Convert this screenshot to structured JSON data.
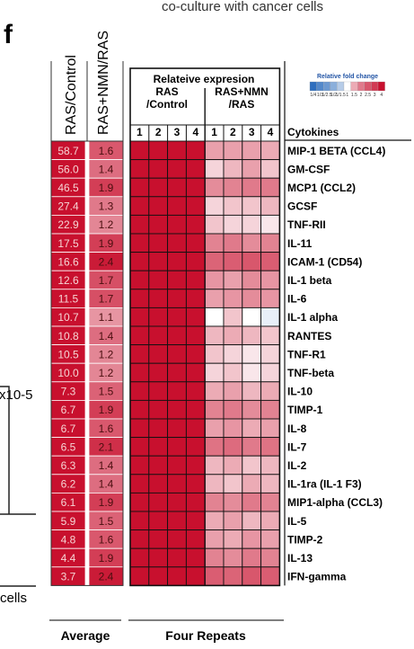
{
  "panel_label": "f",
  "top_caption": "co-culture with cancer cells",
  "left_fragments": {
    "exponent": "x10-5",
    "cells": "cells"
  },
  "colors": {
    "strong_red": "#c8102e",
    "mid_red": "#e7797f",
    "light_red": "#f5c2c4",
    "white": "#ffffff",
    "light_blue": "#dbe8f5",
    "grid": "#1a1a1a"
  },
  "chart_data": {
    "type": "heatmap",
    "average_columns": [
      "RAS/Control",
      "RAS+NMN/RAS"
    ],
    "repeat_header": {
      "line1": "Relateive expresion",
      "group1_line1": "RAS",
      "group1_line2": "/Control",
      "group2_line1": "RAS+NMN",
      "group2_line2": "/RAS"
    },
    "repeat_numbers": [
      "1",
      "2",
      "3",
      "4",
      "1",
      "2",
      "3",
      "4"
    ],
    "cytokines_header": "Cytokines",
    "legend": {
      "title": "Relative fold change",
      "tick_labels": [
        "1/4",
        "1/3",
        "1/2.5",
        "1/2",
        "1/1.5",
        "1",
        "1.5",
        "2",
        "2.5",
        "3",
        "4"
      ]
    },
    "footer_left": "Average",
    "footer_right": "Four Repeats",
    "rows": [
      {
        "cytokine": "MIP-1 BETA (CCL4)",
        "ras_control": "58.7",
        "nmn_ras": "1.6",
        "ras_repeats": [
          4,
          4,
          4,
          4
        ],
        "nmn_repeats": [
          1.6,
          1.6,
          1.6,
          1.5
        ]
      },
      {
        "cytokine": "GM-CSF",
        "ras_control": "56.0",
        "nmn_ras": "1.4",
        "ras_repeats": [
          4,
          4,
          4,
          4
        ],
        "nmn_repeats": [
          1.2,
          1.4,
          1.6,
          1.3
        ]
      },
      {
        "cytokine": "MCP1 (CCL2)",
        "ras_control": "46.5",
        "nmn_ras": "1.9",
        "ras_repeats": [
          4,
          4,
          4,
          4
        ],
        "nmn_repeats": [
          1.8,
          1.9,
          2.0,
          2.0
        ]
      },
      {
        "cytokine": "GCSF",
        "ras_control": "27.4",
        "nmn_ras": "1.3",
        "ras_repeats": [
          4,
          4,
          4,
          4
        ],
        "nmn_repeats": [
          1.2,
          1.3,
          1.3,
          1.4
        ]
      },
      {
        "cytokine": "TNF-RII",
        "ras_control": "22.9",
        "nmn_ras": "1.2",
        "ras_repeats": [
          4,
          4,
          4,
          4
        ],
        "nmn_repeats": [
          1.3,
          1.2,
          1.2,
          1.1
        ]
      },
      {
        "cytokine": "IL-11",
        "ras_control": "17.5",
        "nmn_ras": "1.9",
        "ras_repeats": [
          4,
          4,
          4,
          4
        ],
        "nmn_repeats": [
          1.9,
          2.0,
          1.8,
          1.9
        ]
      },
      {
        "cytokine": "ICAM-1 (CD54)",
        "ras_control": "16.6",
        "nmn_ras": "2.4",
        "ras_repeats": [
          4,
          4,
          4,
          4
        ],
        "nmn_repeats": [
          2.3,
          2.4,
          2.5,
          2.4
        ]
      },
      {
        "cytokine": "IL-1 beta",
        "ras_control": "12.6",
        "nmn_ras": "1.7",
        "ras_repeats": [
          4,
          4,
          4,
          4
        ],
        "nmn_repeats": [
          1.7,
          1.6,
          1.8,
          1.7
        ]
      },
      {
        "cytokine": "IL-6",
        "ras_control": "11.5",
        "nmn_ras": "1.7",
        "ras_repeats": [
          4,
          4,
          4,
          4
        ],
        "nmn_repeats": [
          1.6,
          1.7,
          1.8,
          1.7
        ]
      },
      {
        "cytokine": "IL-1 alpha",
        "ras_control": "10.7",
        "nmn_ras": "1.1",
        "ras_repeats": [
          4,
          4,
          4,
          4
        ],
        "nmn_repeats": [
          1.0,
          1.3,
          1.0,
          0.9
        ]
      },
      {
        "cytokine": "RANTES",
        "ras_control": "10.8",
        "nmn_ras": "1.4",
        "ras_repeats": [
          4,
          4,
          4,
          4
        ],
        "nmn_repeats": [
          1.4,
          1.5,
          1.4,
          1.3
        ]
      },
      {
        "cytokine": "TNF-R1",
        "ras_control": "10.5",
        "nmn_ras": "1.2",
        "ras_repeats": [
          4,
          4,
          4,
          4
        ],
        "nmn_repeats": [
          1.3,
          1.2,
          1.1,
          1.2
        ]
      },
      {
        "cytokine": "TNF-beta",
        "ras_control": "10.0",
        "nmn_ras": "1.2",
        "ras_repeats": [
          4,
          4,
          4,
          4
        ],
        "nmn_repeats": [
          1.2,
          1.3,
          1.1,
          1.2
        ]
      },
      {
        "cytokine": "IL-10",
        "ras_control": "7.3",
        "nmn_ras": "1.5",
        "ras_repeats": [
          4,
          4,
          4,
          4
        ],
        "nmn_repeats": [
          1.5,
          1.6,
          1.4,
          1.5
        ]
      },
      {
        "cytokine": "TIMP-1",
        "ras_control": "6.7",
        "nmn_ras": "1.9",
        "ras_repeats": [
          4,
          4,
          4,
          4
        ],
        "nmn_repeats": [
          1.9,
          2.0,
          1.8,
          1.9
        ]
      },
      {
        "cytokine": "IL-8",
        "ras_control": "6.7",
        "nmn_ras": "1.6",
        "ras_repeats": [
          4,
          4,
          4,
          4
        ],
        "nmn_repeats": [
          1.6,
          1.7,
          1.5,
          1.6
        ]
      },
      {
        "cytokine": "IL-7",
        "ras_control": "6.5",
        "nmn_ras": "2.1",
        "ras_repeats": [
          4,
          4,
          4,
          4
        ],
        "nmn_repeats": [
          2.1,
          2.2,
          2.0,
          2.1
        ]
      },
      {
        "cytokine": "IL-2",
        "ras_control": "6.3",
        "nmn_ras": "1.4",
        "ras_repeats": [
          4,
          4,
          4,
          4
        ],
        "nmn_repeats": [
          1.4,
          1.5,
          1.3,
          1.4
        ]
      },
      {
        "cytokine": "IL-1ra (IL-1 F3)",
        "ras_control": "6.2",
        "nmn_ras": "1.4",
        "ras_repeats": [
          4,
          4,
          4,
          4
        ],
        "nmn_repeats": [
          1.4,
          1.3,
          1.5,
          1.4
        ]
      },
      {
        "cytokine": "MIP1-alpha (CCL3)",
        "ras_control": "6.1",
        "nmn_ras": "1.9",
        "ras_repeats": [
          4,
          4,
          4,
          4
        ],
        "nmn_repeats": [
          1.9,
          1.8,
          2.0,
          1.9
        ]
      },
      {
        "cytokine": "IL-5",
        "ras_control": "5.9",
        "nmn_ras": "1.5",
        "ras_repeats": [
          4,
          4,
          4,
          4
        ],
        "nmn_repeats": [
          1.5,
          1.6,
          1.4,
          1.5
        ]
      },
      {
        "cytokine": "TIMP-2",
        "ras_control": "4.8",
        "nmn_ras": "1.6",
        "ras_repeats": [
          4,
          4,
          4,
          4
        ],
        "nmn_repeats": [
          1.6,
          1.5,
          1.7,
          1.6
        ]
      },
      {
        "cytokine": "IL-13",
        "ras_control": "4.4",
        "nmn_ras": "1.9",
        "ras_repeats": [
          4,
          4,
          4,
          4
        ],
        "nmn_repeats": [
          1.9,
          1.8,
          2.0,
          1.9
        ]
      },
      {
        "cytokine": "IFN-gamma",
        "ras_control": "3.7",
        "nmn_ras": "2.4",
        "ras_repeats": [
          4,
          4,
          4,
          4
        ],
        "nmn_repeats": [
          2.4,
          2.3,
          2.5,
          2.4
        ]
      }
    ]
  }
}
